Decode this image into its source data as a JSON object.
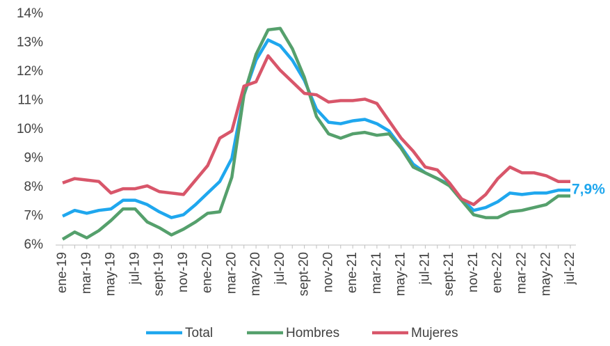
{
  "chart_data": {
    "type": "line",
    "categories": [
      "ene-19",
      null,
      "mar-19",
      null,
      "may-19",
      null,
      "jul-19",
      null,
      "sept-19",
      null,
      "nov-19",
      null,
      "ene-20",
      null,
      "mar-20",
      null,
      "may-20",
      null,
      "jul-20",
      null,
      "sept-20",
      null,
      "nov-20",
      null,
      "ene-21",
      null,
      "mar-21",
      null,
      "may-21",
      null,
      "jul-21",
      null,
      "sept-21",
      null,
      "nov-21",
      null,
      "ene-22",
      null,
      "mar-22",
      null,
      "may-22",
      null,
      "jul-22"
    ],
    "series": [
      {
        "name": "Total",
        "color": "#1fa7ee",
        "values": [
          7.0,
          7.2,
          7.1,
          7.2,
          7.25,
          7.55,
          7.55,
          7.4,
          7.15,
          6.95,
          7.05,
          7.4,
          7.8,
          8.2,
          9.0,
          11.2,
          12.4,
          13.1,
          12.9,
          12.4,
          11.7,
          10.7,
          10.25,
          10.2,
          10.3,
          10.35,
          10.2,
          9.95,
          9.4,
          8.8,
          8.5,
          8.3,
          8.1,
          7.6,
          7.2,
          7.3,
          7.5,
          7.8,
          7.75,
          7.8,
          7.8,
          7.9,
          7.9
        ],
        "value_labels": [
          null,
          null,
          null,
          null,
          null,
          null,
          null,
          null,
          null,
          null,
          null,
          null,
          null,
          null,
          null,
          null,
          null,
          null,
          null,
          null,
          null,
          null,
          null,
          null,
          null,
          null,
          null,
          null,
          null,
          null,
          null,
          null,
          null,
          null,
          null,
          null,
          null,
          null,
          null,
          null,
          null,
          null,
          "7,9%"
        ]
      },
      {
        "name": "Hombres",
        "color": "#55a06c",
        "values": [
          6.2,
          6.45,
          6.25,
          6.5,
          6.85,
          7.25,
          7.25,
          6.8,
          6.6,
          6.35,
          6.55,
          6.8,
          7.1,
          7.15,
          8.35,
          11.2,
          12.6,
          13.45,
          13.5,
          12.8,
          11.8,
          10.45,
          9.85,
          9.7,
          9.85,
          9.9,
          9.8,
          9.85,
          9.35,
          8.7,
          8.5,
          8.3,
          8.05,
          7.55,
          7.05,
          6.95,
          6.95,
          7.15,
          7.2,
          7.3,
          7.4,
          7.7,
          7.7
        ]
      },
      {
        "name": "Mujeres",
        "color": "#d8566a",
        "values": [
          8.15,
          8.3,
          8.25,
          8.2,
          7.8,
          7.95,
          7.95,
          8.05,
          7.85,
          7.8,
          7.75,
          8.25,
          8.75,
          9.7,
          9.95,
          11.5,
          11.65,
          12.55,
          12.05,
          11.65,
          11.25,
          11.2,
          10.95,
          11.0,
          11.0,
          11.05,
          10.9,
          10.3,
          9.7,
          9.25,
          8.7,
          8.6,
          8.15,
          7.6,
          7.4,
          7.75,
          8.3,
          8.7,
          8.5,
          8.5,
          8.4,
          8.2,
          8.2
        ]
      }
    ],
    "ylim": [
      6,
      14
    ],
    "yticks": [
      {
        "value": 6,
        "label": "6%"
      },
      {
        "value": 7,
        "label": "7%"
      },
      {
        "value": 8,
        "label": "8%"
      },
      {
        "value": 9,
        "label": "9%"
      },
      {
        "value": 10,
        "label": "10%"
      },
      {
        "value": 11,
        "label": "11%"
      },
      {
        "value": 12,
        "label": "12%"
      },
      {
        "value": 13,
        "label": "13%"
      },
      {
        "value": 14,
        "label": "14%"
      }
    ],
    "grid": false,
    "legend": "bottom"
  }
}
